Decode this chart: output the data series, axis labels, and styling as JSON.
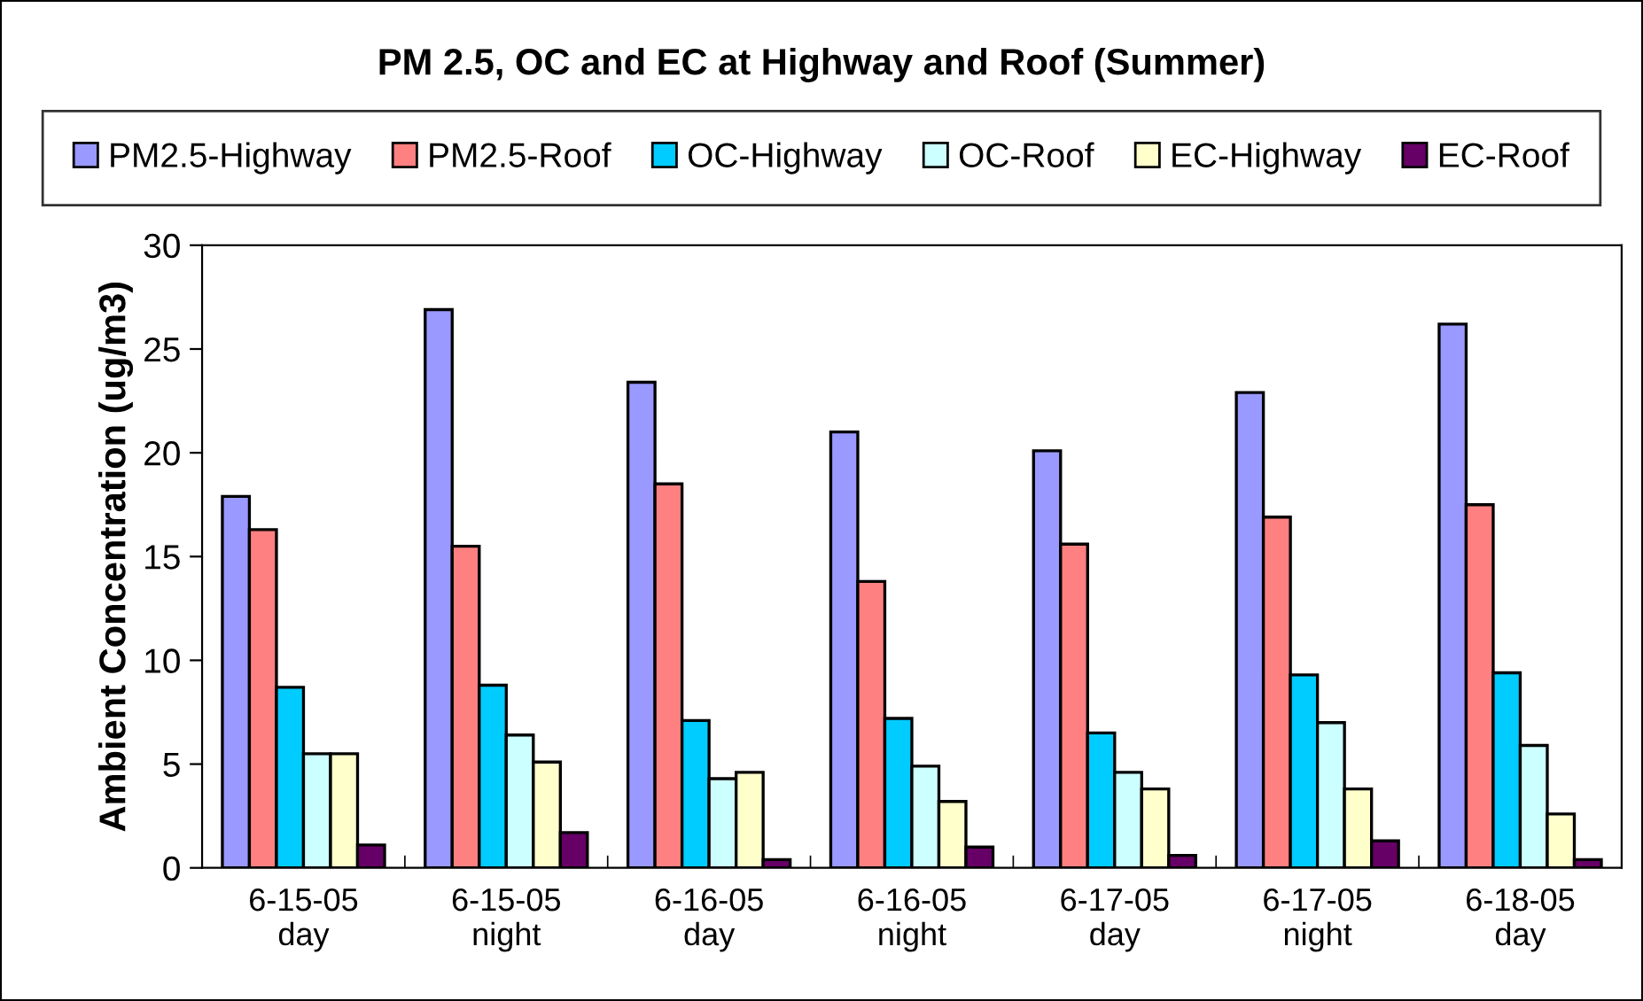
{
  "chart_data": {
    "type": "bar",
    "title": "PM 2.5, OC and EC at Highway and Roof (Summer)",
    "ylabel": "Ambient Concentration (ug/m3)",
    "categories": [
      "6-15-05\nday",
      "6-15-05\nnight",
      "6-16-05\nday",
      "6-16-05\nnight",
      "6-17-05\nday",
      "6-17-05\nnight",
      "6-18-05\nday"
    ],
    "series": [
      {
        "name": "PM2.5-Highway",
        "color": "#9999ff",
        "values": [
          17.9,
          26.9,
          23.4,
          21.0,
          20.1,
          22.9,
          26.2
        ]
      },
      {
        "name": "PM2.5-Roof",
        "color": "#ff8080",
        "values": [
          16.3,
          15.5,
          18.5,
          13.8,
          15.6,
          16.9,
          17.5
        ]
      },
      {
        "name": "OC-Highway",
        "color": "#00ccff",
        "values": [
          8.7,
          8.8,
          7.1,
          7.2,
          6.5,
          9.3,
          9.4
        ]
      },
      {
        "name": "OC-Roof",
        "color": "#ccffff",
        "values": [
          5.5,
          6.4,
          4.3,
          4.9,
          4.6,
          7.0,
          5.9
        ]
      },
      {
        "name": "EC-Highway",
        "color": "#ffffcc",
        "values": [
          5.5,
          5.1,
          4.6,
          3.2,
          3.8,
          3.8,
          2.6
        ]
      },
      {
        "name": "EC-Roof",
        "color": "#660066",
        "values": [
          1.1,
          1.7,
          0.4,
          1.0,
          0.6,
          1.3,
          0.4
        ]
      }
    ],
    "ylim": [
      0,
      30
    ],
    "yticks": [
      0,
      5,
      10,
      15,
      20,
      25,
      30
    ],
    "grid": false,
    "legend": "top"
  }
}
